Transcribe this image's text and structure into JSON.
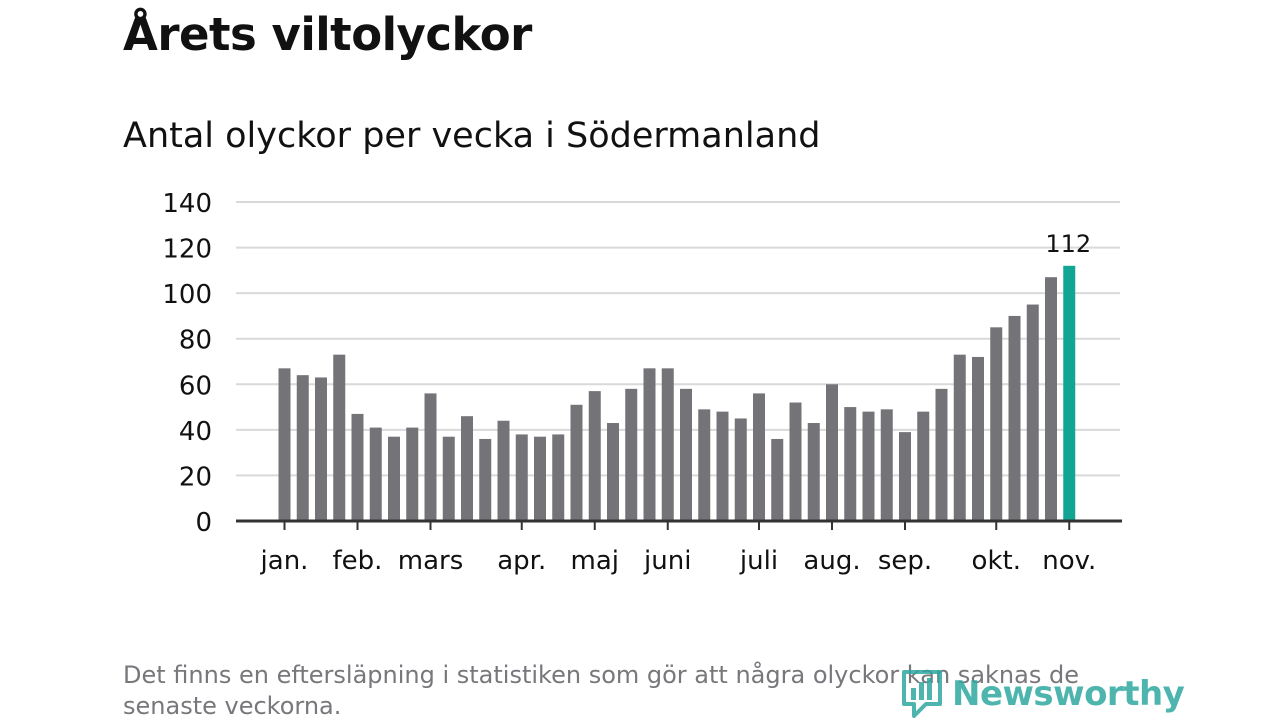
{
  "title": "Årets viltolyckor",
  "subtitle": "Antal olyckor per vecka i Södermanland",
  "footnote": "Det finns en eftersläpning i statistiken som gör att några olyckor kan saknas de senaste veckorna.",
  "logo": {
    "text": "Newsworthy",
    "icon": "newsworthy-logo-icon"
  },
  "colors": {
    "bar": "#747378",
    "highlight": "#13a594",
    "grid": "#d9d9d9",
    "axis": "#333333",
    "text": "#111111",
    "footnote": "#77777c"
  },
  "chart_data": {
    "type": "bar",
    "title": "Antal olyckor per vecka i Södermanland",
    "xlabel": "",
    "ylabel": "",
    "ylim": [
      0,
      140
    ],
    "yticks": [
      0,
      20,
      40,
      60,
      80,
      100,
      120,
      140
    ],
    "grid": true,
    "values": [
      67,
      64,
      63,
      73,
      47,
      41,
      37,
      41,
      56,
      37,
      46,
      36,
      44,
      38,
      37,
      38,
      51,
      57,
      43,
      58,
      67,
      67,
      58,
      49,
      48,
      45,
      56,
      36,
      52,
      43,
      60,
      50,
      48,
      49,
      39,
      48,
      58,
      73,
      72,
      85,
      90,
      95,
      107,
      112
    ],
    "highlight_index": 43,
    "highlight_label": "112",
    "month_labels": [
      {
        "label": "jan.",
        "week_index": 0
      },
      {
        "label": "feb.",
        "week_index": 4
      },
      {
        "label": "mars",
        "week_index": 8
      },
      {
        "label": "apr.",
        "week_index": 13
      },
      {
        "label": "maj",
        "week_index": 17
      },
      {
        "label": "juni",
        "week_index": 21
      },
      {
        "label": "juli",
        "week_index": 26
      },
      {
        "label": "aug.",
        "week_index": 30
      },
      {
        "label": "sep.",
        "week_index": 34
      },
      {
        "label": "okt.",
        "week_index": 39
      },
      {
        "label": "nov.",
        "week_index": 43
      }
    ]
  }
}
